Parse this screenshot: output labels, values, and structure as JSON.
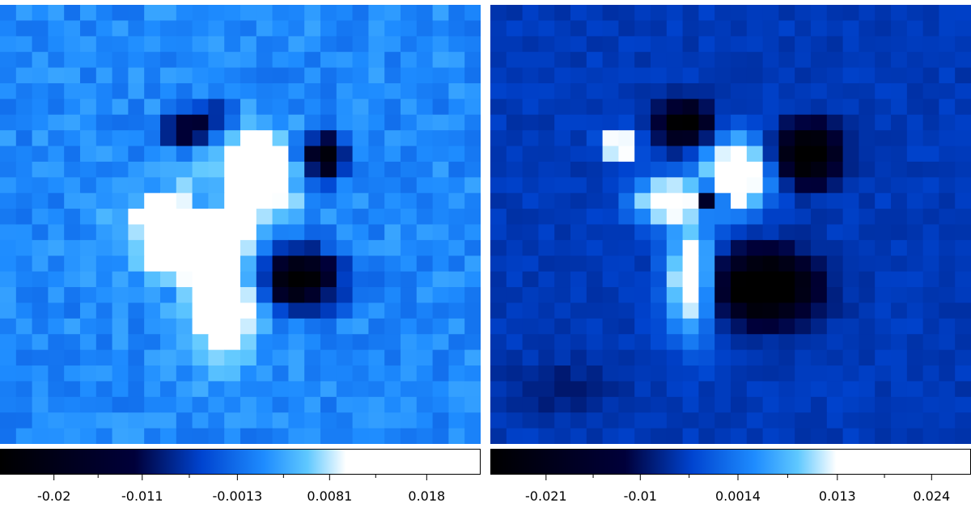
{
  "palette": [
    "#000000",
    "#00003a",
    "#0044d0",
    "#1e8cff",
    "#5fc8ff",
    "#ffffff",
    "#ffffff"
  ],
  "palette_stops": [
    0,
    0.28,
    0.42,
    0.55,
    0.64,
    0.72,
    1.0
  ],
  "chart_data": [
    {
      "type": "heatmap",
      "grid": [
        30,
        28
      ],
      "colorbar": {
        "range": [
          -0.0255,
          0.0235
        ],
        "ticks": [
          -0.02,
          -0.011,
          -0.0013,
          0.0081,
          0.018
        ],
        "tick_labels": [
          "-0.02",
          "-0.011",
          "-0.0013",
          "0.0081",
          "0.018"
        ],
        "minor_ticks": [
          -0.0155,
          -0.0062,
          0.0034,
          0.0128
        ]
      },
      "background": {
        "level": 0.00105,
        "noise": 0.0022
      },
      "blobs": [
        {
          "cx": 11.5,
          "cy": 8.0,
          "sx": 1.2,
          "sy": 0.6,
          "amp": -0.018
        },
        {
          "cx": 13.0,
          "cy": 7.0,
          "sx": 1.0,
          "sy": 0.6,
          "amp": -0.011
        },
        {
          "cx": 20.2,
          "cy": 9.7,
          "sx": 0.9,
          "sy": 1.0,
          "amp": -0.026
        },
        {
          "cx": 18.7,
          "cy": 17.5,
          "sx": 1.8,
          "sy": 1.3,
          "amp": -0.027
        },
        {
          "cx": 16.0,
          "cy": 10.8,
          "sx": 1.6,
          "sy": 1.8,
          "amp": 0.02
        },
        {
          "cx": 11.5,
          "cy": 14.5,
          "sx": 2.3,
          "sy": 1.7,
          "amp": 0.02
        },
        {
          "cx": 14.0,
          "cy": 19.0,
          "sx": 1.4,
          "sy": 2.4,
          "amp": 0.02
        },
        {
          "cx": 13.0,
          "cy": 12.3,
          "sx": 0.7,
          "sy": 0.6,
          "amp": -0.012
        }
      ],
      "seed": 7
    },
    {
      "type": "heatmap",
      "grid": [
        30,
        28
      ],
      "colorbar": {
        "range": [
          -0.0275,
          0.0286
        ],
        "ticks": [
          -0.021,
          -0.01,
          0.0014,
          0.013,
          0.024
        ],
        "tick_labels": [
          "-0.021",
          "-0.01",
          "0.0014",
          "0.013",
          "0.024"
        ],
        "minor_ticks": [
          -0.0155,
          -0.0043,
          0.0072,
          0.0185
        ]
      },
      "background": {
        "level": -0.0052,
        "noise": 0.0011
      },
      "blobs": [
        {
          "cx": 12.2,
          "cy": 7.6,
          "sx": 1.1,
          "sy": 0.9,
          "amp": -0.026
        },
        {
          "cx": 19.8,
          "cy": 9.5,
          "sx": 1.3,
          "sy": 1.2,
          "amp": -0.03
        },
        {
          "cx": 17.2,
          "cy": 18.0,
          "sx": 2.0,
          "sy": 1.4,
          "amp": -0.035
        },
        {
          "cx": 8.0,
          "cy": 9.0,
          "sx": 0.6,
          "sy": 0.6,
          "amp": 0.035
        },
        {
          "cx": 15.3,
          "cy": 10.8,
          "sx": 1.4,
          "sy": 1.6,
          "amp": 0.03
        },
        {
          "cx": 11.0,
          "cy": 12.5,
          "sx": 1.4,
          "sy": 1.0,
          "amp": 0.025
        },
        {
          "cx": 12.5,
          "cy": 17.5,
          "sx": 1.0,
          "sy": 2.4,
          "amp": 0.025
        },
        {
          "cx": 13.7,
          "cy": 12.3,
          "sx": 0.5,
          "sy": 0.5,
          "amp": -0.03
        },
        {
          "cx": 4.5,
          "cy": 24.5,
          "sx": 2.5,
          "sy": 1.2,
          "amp": -0.004
        }
      ],
      "seed": 19
    }
  ]
}
